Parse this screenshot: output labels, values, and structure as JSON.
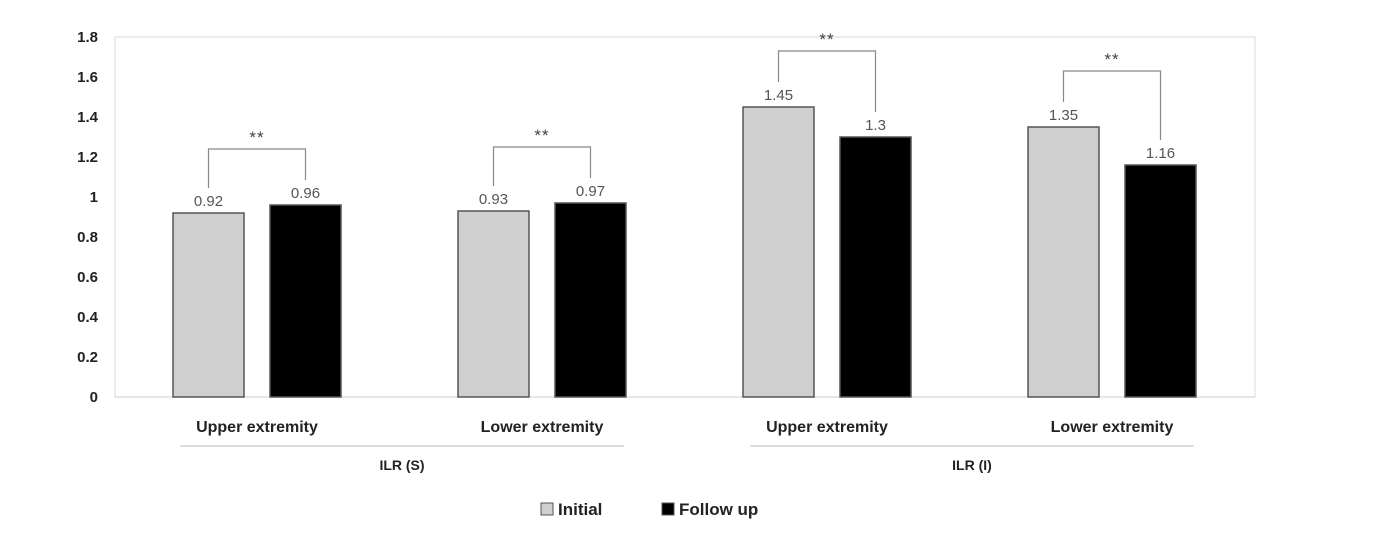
{
  "chart_data": {
    "type": "bar",
    "categories": [
      "Upper extremity",
      "Lower extremity",
      "Upper extremity",
      "Lower extremity"
    ],
    "groups": [
      {
        "label": "ILR (S)",
        "category_indices": [
          0,
          1
        ]
      },
      {
        "label": "ILR (I)",
        "category_indices": [
          2,
          3
        ]
      }
    ],
    "series": [
      {
        "name": "Initial",
        "color": "#cfcfcf",
        "values": [
          0.92,
          0.93,
          1.45,
          1.35
        ],
        "labels": [
          "0.92",
          "0.93",
          "1.45",
          "1.35"
        ]
      },
      {
        "name": "Follow up",
        "color": "#000000",
        "values": [
          0.96,
          0.97,
          1.3,
          1.16
        ],
        "labels": [
          "0.96",
          "0.97",
          "1.3",
          "1.16"
        ]
      }
    ],
    "significance": [
      "**",
      "**",
      "**",
      "**"
    ],
    "ylim": [
      0,
      1.8
    ],
    "yticks": [
      "0",
      "0.2",
      "0.4",
      "0.6",
      "0.8",
      "1",
      "1.2",
      "1.4",
      "1.6",
      "1.8"
    ],
    "title": "",
    "xlabel": "",
    "ylabel": "",
    "grid": false,
    "legend_position": "bottom-center"
  }
}
